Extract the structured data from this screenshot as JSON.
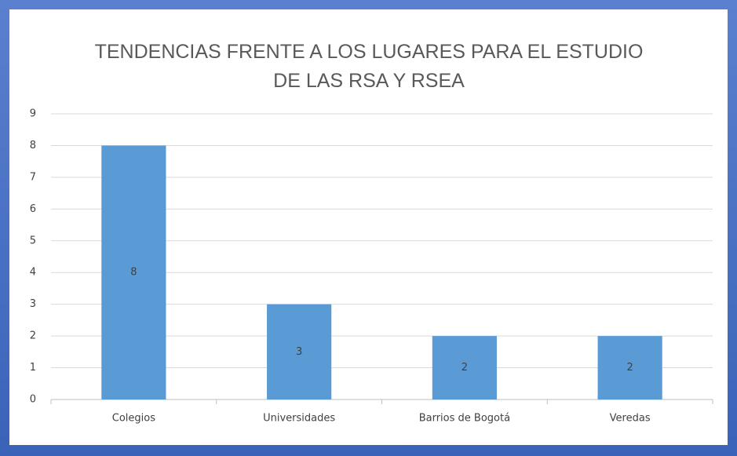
{
  "chart_data": {
    "type": "bar",
    "title": "TENDENCIAS FRENTE A LOS LUGARES PARA EL ESTUDIO DE LAS RSA Y RSEA",
    "categories": [
      "Colegios",
      "Universidades",
      "Barrios de Bogotá",
      "Veredas"
    ],
    "values": [
      8,
      3,
      2,
      2
    ],
    "color": "#5b9bd5",
    "ylim": [
      0,
      9
    ],
    "yticks": [
      0,
      1,
      2,
      3,
      4,
      5,
      6,
      7,
      8,
      9
    ],
    "grid": true,
    "data_labels": true
  }
}
